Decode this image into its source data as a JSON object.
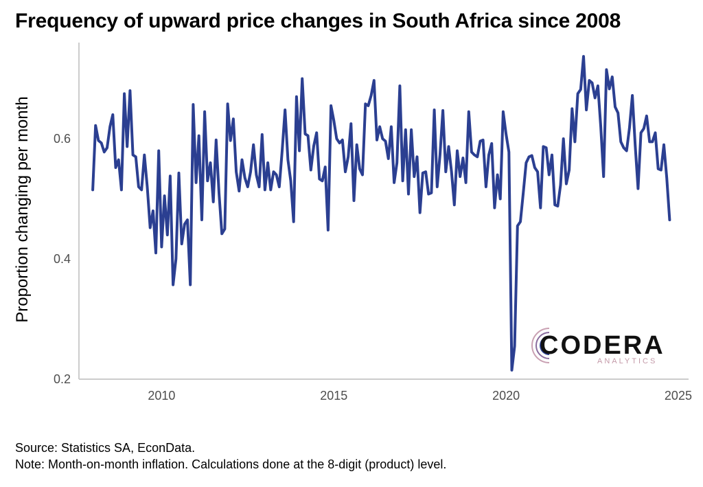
{
  "title": "Frequency of upward price changes in South Africa since 2008",
  "ylabel": "Proportion changing per month",
  "source": "Source: Statistics SA, EconData.",
  "note": "Note: Month-on-month inflation. Calculations done at the 8-digit (product) level.",
  "logo": {
    "name": "CODERA",
    "sub": "ANALYTICS"
  },
  "colors": {
    "line": "#2b3f91",
    "axis": "#cccccc"
  },
  "chart_data": {
    "type": "line",
    "xlabel": "",
    "ylabel": "Proportion changing per month",
    "xlim": [
      2007.6,
      2025.3
    ],
    "ylim": [
      0.2,
      0.76
    ],
    "xticks": [
      2010,
      2015,
      2020,
      2025
    ],
    "yticks": [
      0.2,
      0.4,
      0.6
    ],
    "ytick_labels": [
      "0.2",
      "0.4",
      "0.6"
    ],
    "series": [
      {
        "x": [
          2008.0,
          2008.083,
          2008.167,
          2008.25,
          2008.333,
          2008.417,
          2008.5,
          2008.583,
          2008.667,
          2008.75,
          2008.833,
          2008.917,
          2009.0,
          2009.083,
          2009.167,
          2009.25,
          2009.333,
          2009.417,
          2009.5,
          2009.583,
          2009.667,
          2009.75,
          2009.833,
          2009.917,
          2010.0,
          2010.083,
          2010.167,
          2010.25,
          2010.333,
          2010.417,
          2010.5,
          2010.583,
          2010.667,
          2010.75,
          2010.833,
          2010.917,
          2011.0,
          2011.083,
          2011.167,
          2011.25,
          2011.333,
          2011.417,
          2011.5,
          2011.583,
          2011.667,
          2011.75,
          2011.833,
          2011.917,
          2012.0,
          2012.083,
          2012.167,
          2012.25,
          2012.333,
          2012.417,
          2012.5,
          2012.583,
          2012.667,
          2012.75,
          2012.833,
          2012.917,
          2013.0,
          2013.083,
          2013.167,
          2013.25,
          2013.333,
          2013.417,
          2013.5,
          2013.583,
          2013.667,
          2013.75,
          2013.833,
          2013.917,
          2014.0,
          2014.083,
          2014.167,
          2014.25,
          2014.333,
          2014.417,
          2014.5,
          2014.583,
          2014.667,
          2014.75,
          2014.833,
          2014.917,
          2015.0,
          2015.083,
          2015.167,
          2015.25,
          2015.333,
          2015.417,
          2015.5,
          2015.583,
          2015.667,
          2015.75,
          2015.833,
          2015.917,
          2016.0,
          2016.083,
          2016.167,
          2016.25,
          2016.333,
          2016.417,
          2016.5,
          2016.583,
          2016.667,
          2016.75,
          2016.833,
          2016.917,
          2017.0,
          2017.083,
          2017.167,
          2017.25,
          2017.333,
          2017.417,
          2017.5,
          2017.583,
          2017.667,
          2017.75,
          2017.833,
          2017.917,
          2018.0,
          2018.083,
          2018.167,
          2018.25,
          2018.333,
          2018.417,
          2018.5,
          2018.583,
          2018.667,
          2018.75,
          2018.833,
          2018.917,
          2019.0,
          2019.083,
          2019.167,
          2019.25,
          2019.333,
          2019.417,
          2019.5,
          2019.583,
          2019.667,
          2019.75,
          2019.833,
          2019.917,
          2020.0,
          2020.083,
          2020.167,
          2020.25,
          2020.333,
          2020.417,
          2020.5,
          2020.583,
          2020.667,
          2020.75,
          2020.833,
          2020.917,
          2021.0,
          2021.083,
          2021.167,
          2021.25,
          2021.333,
          2021.417,
          2021.5,
          2021.583,
          2021.667,
          2021.75,
          2021.833,
          2021.917,
          2022.0,
          2022.083,
          2022.167,
          2022.25,
          2022.333,
          2022.417,
          2022.5,
          2022.583,
          2022.667,
          2022.75,
          2022.833,
          2022.917,
          2023.0,
          2023.083,
          2023.167,
          2023.25,
          2023.333,
          2023.417,
          2023.5,
          2023.583,
          2023.667,
          2023.75,
          2023.833,
          2023.917,
          2024.0,
          2024.083,
          2024.167,
          2024.25,
          2024.333,
          2024.417,
          2024.5,
          2024.583,
          2024.667,
          2024.75
        ],
        "y": [
          0.515,
          0.622,
          0.597,
          0.593,
          0.578,
          0.585,
          0.62,
          0.64,
          0.552,
          0.565,
          0.515,
          0.675,
          0.587,
          0.68,
          0.573,
          0.57,
          0.52,
          0.515,
          0.573,
          0.52,
          0.452,
          0.48,
          0.41,
          0.58,
          0.42,
          0.505,
          0.44,
          0.538,
          0.357,
          0.4,
          0.543,
          0.425,
          0.458,
          0.465,
          0.357,
          0.657,
          0.527,
          0.605,
          0.465,
          0.645,
          0.53,
          0.56,
          0.495,
          0.598,
          0.51,
          0.442,
          0.45,
          0.658,
          0.597,
          0.633,
          0.545,
          0.513,
          0.565,
          0.535,
          0.52,
          0.545,
          0.59,
          0.54,
          0.52,
          0.607,
          0.515,
          0.56,
          0.515,
          0.545,
          0.54,
          0.52,
          0.58,
          0.648,
          0.565,
          0.53,
          0.462,
          0.67,
          0.58,
          0.7,
          0.608,
          0.605,
          0.548,
          0.588,
          0.61,
          0.533,
          0.53,
          0.553,
          0.448,
          0.655,
          0.63,
          0.6,
          0.593,
          0.598,
          0.545,
          0.57,
          0.625,
          0.497,
          0.59,
          0.55,
          0.54,
          0.658,
          0.655,
          0.672,
          0.697,
          0.598,
          0.62,
          0.6,
          0.596,
          0.567,
          0.62,
          0.527,
          0.56,
          0.688,
          0.53,
          0.615,
          0.508,
          0.615,
          0.537,
          0.57,
          0.477,
          0.543,
          0.545,
          0.508,
          0.51,
          0.648,
          0.52,
          0.573,
          0.647,
          0.545,
          0.587,
          0.545,
          0.49,
          0.58,
          0.537,
          0.568,
          0.527,
          0.645,
          0.578,
          0.573,
          0.57,
          0.596,
          0.598,
          0.52,
          0.573,
          0.592,
          0.485,
          0.54,
          0.5,
          0.645,
          0.608,
          0.578,
          0.215,
          0.255,
          0.455,
          0.462,
          0.51,
          0.56,
          0.57,
          0.572,
          0.552,
          0.545,
          0.485,
          0.587,
          0.585,
          0.54,
          0.573,
          0.49,
          0.488,
          0.523,
          0.6,
          0.525,
          0.548,
          0.65,
          0.595,
          0.675,
          0.682,
          0.737,
          0.648,
          0.697,
          0.693,
          0.668,
          0.688,
          0.62,
          0.537,
          0.715,
          0.683,
          0.703,
          0.653,
          0.643,
          0.595,
          0.585,
          0.58,
          0.618,
          0.672,
          0.59,
          0.517,
          0.61,
          0.617,
          0.638,
          0.595,
          0.595,
          0.61,
          0.55,
          0.548,
          0.59,
          0.535,
          0.465
        ]
      }
    ]
  }
}
